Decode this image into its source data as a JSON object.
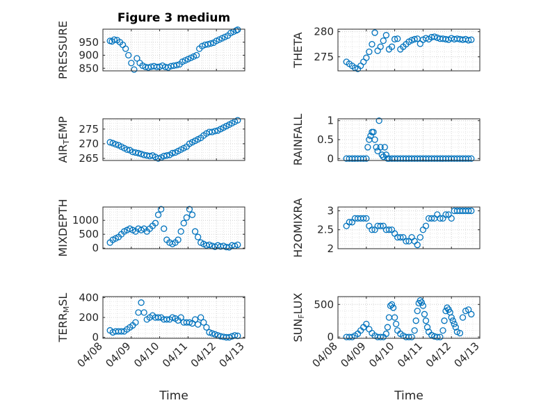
{
  "chart_data": [
    {
      "type": "scatter",
      "title": "Figure 3 medium",
      "ylabel_parts": [
        "PRESSURE"
      ],
      "ylim": [
        840,
        1000
      ],
      "yticks": [
        850,
        900,
        950
      ],
      "ytick_labels": [
        "850",
        "900",
        "950"
      ],
      "xlim": [
        0,
        5
      ],
      "xticks": [
        0,
        1,
        2,
        3,
        4,
        5
      ],
      "xtick_labels": [],
      "color": "#0072BD",
      "x": [
        0.25,
        0.32,
        0.4,
        0.5,
        0.6,
        0.7,
        0.8,
        0.9,
        1.0,
        1.1,
        1.2,
        1.3,
        1.4,
        1.5,
        1.6,
        1.7,
        1.8,
        1.9,
        2.0,
        2.1,
        2.2,
        2.3,
        2.4,
        2.5,
        2.6,
        2.7,
        2.8,
        2.9,
        3.0,
        3.1,
        3.2,
        3.3,
        3.4,
        3.5,
        3.6,
        3.7,
        3.8,
        3.9,
        4.0,
        4.1,
        4.2,
        4.3,
        4.4,
        4.5,
        4.6,
        4.7,
        4.75
      ],
      "y": [
        955,
        953,
        960,
        958,
        950,
        940,
        925,
        900,
        870,
        845,
        888,
        870,
        860,
        855,
        853,
        856,
        858,
        855,
        856,
        860,
        855,
        853,
        858,
        860,
        862,
        865,
        875,
        880,
        885,
        890,
        895,
        900,
        925,
        935,
        940,
        942,
        945,
        948,
        955,
        960,
        965,
        970,
        975,
        985,
        990,
        995,
        998
      ]
    },
    {
      "type": "scatter",
      "title": "",
      "ylabel_parts": [
        "THETA"
      ],
      "ylim": [
        272.2,
        280.5
      ],
      "yticks": [
        275,
        280
      ],
      "ytick_labels": [
        "275",
        "280"
      ],
      "xlim": [
        0,
        5
      ],
      "xticks": [
        0,
        1,
        2,
        3,
        4,
        5
      ],
      "xtick_labels": [],
      "color": "#0072BD",
      "x": [
        0.3,
        0.4,
        0.5,
        0.6,
        0.7,
        0.8,
        0.9,
        1.0,
        1.1,
        1.2,
        1.3,
        1.4,
        1.5,
        1.6,
        1.7,
        1.8,
        1.9,
        2.0,
        2.1,
        2.2,
        2.3,
        2.4,
        2.5,
        2.6,
        2.7,
        2.8,
        2.9,
        3.0,
        3.1,
        3.2,
        3.3,
        3.4,
        3.5,
        3.6,
        3.7,
        3.8,
        3.9,
        4.0,
        4.1,
        4.2,
        4.3,
        4.4,
        4.5,
        4.6,
        4.7
      ],
      "y": [
        274,
        273.6,
        273.2,
        272.8,
        272.6,
        273.2,
        274,
        274.8,
        276,
        277.5,
        279.8,
        276.2,
        277,
        278.2,
        279.3,
        276.5,
        277,
        278.5,
        278.6,
        276.5,
        277,
        277.5,
        278,
        278.3,
        278.5,
        278.6,
        277.6,
        278.4,
        278.7,
        278.5,
        278.9,
        279,
        278.8,
        278.6,
        278.6,
        278.5,
        278.4,
        278.7,
        278.5,
        278.6,
        278.5,
        278.4,
        278.5,
        278.3,
        278.4
      ]
    },
    {
      "type": "scatter",
      "title": "",
      "ylabel_parts": [
        "AIR",
        "T",
        "EMP"
      ],
      "ylim": [
        264.3,
        278.5
      ],
      "yticks": [
        265,
        270,
        275
      ],
      "ytick_labels": [
        "265",
        "270",
        "275"
      ],
      "xlim": [
        0,
        5
      ],
      "xticks": [
        0,
        1,
        2,
        3,
        4,
        5
      ],
      "xtick_labels": [],
      "color": "#0072BD",
      "x": [
        0.25,
        0.35,
        0.45,
        0.55,
        0.65,
        0.75,
        0.85,
        0.95,
        1.05,
        1.15,
        1.25,
        1.35,
        1.45,
        1.55,
        1.65,
        1.75,
        1.85,
        1.95,
        2.05,
        2.15,
        2.25,
        2.35,
        2.45,
        2.55,
        2.65,
        2.75,
        2.85,
        2.95,
        3.05,
        3.15,
        3.25,
        3.35,
        3.45,
        3.55,
        3.65,
        3.75,
        3.85,
        3.95,
        4.05,
        4.15,
        4.25,
        4.35,
        4.45,
        4.55,
        4.65,
        4.75
      ],
      "y": [
        270.5,
        270.2,
        269.8,
        269.5,
        269,
        268.5,
        268,
        267.8,
        267.2,
        267,
        266.8,
        266.5,
        266.2,
        266,
        265.8,
        266,
        265.5,
        265,
        265.3,
        265.8,
        266,
        266.2,
        266.8,
        267,
        267.5,
        268,
        268.5,
        269,
        270,
        270.5,
        271,
        271.5,
        272,
        272.8,
        273.5,
        274,
        274,
        274.3,
        274.5,
        275,
        275.5,
        276,
        276.5,
        277,
        277.5,
        278
      ]
    },
    {
      "type": "scatter",
      "title": "",
      "ylabel_parts": [
        "RAINFALL"
      ],
      "ylim": [
        -0.05,
        1.05
      ],
      "yticks": [
        0,
        0.5,
        1
      ],
      "ytick_labels": [
        "0",
        "0.5",
        "1"
      ],
      "xlim": [
        0,
        5
      ],
      "xticks": [
        0,
        1,
        2,
        3,
        4,
        5
      ],
      "xtick_labels": [],
      "color": "#0072BD",
      "x": [
        0.3,
        0.4,
        0.5,
        0.6,
        0.7,
        0.8,
        0.9,
        1.0,
        1.05,
        1.1,
        1.15,
        1.2,
        1.25,
        1.3,
        1.35,
        1.4,
        1.45,
        1.5,
        1.55,
        1.6,
        1.65,
        1.7,
        1.75,
        1.8,
        1.9,
        2.0,
        2.1,
        2.2,
        2.3,
        2.4,
        2.5,
        2.6,
        2.7,
        2.8,
        2.9,
        3.0,
        3.1,
        3.2,
        3.3,
        3.4,
        3.5,
        3.6,
        3.7,
        3.8,
        3.9,
        4.0,
        4.1,
        4.2,
        4.3,
        4.4,
        4.5,
        4.6,
        4.7
      ],
      "y": [
        0,
        0,
        0,
        0,
        0,
        0,
        0,
        0,
        0.3,
        0.5,
        0.6,
        0.7,
        0.7,
        0.5,
        0.3,
        0.2,
        1.0,
        0.3,
        0.1,
        0.05,
        0.3,
        0.1,
        0,
        0,
        0,
        0,
        0,
        0,
        0,
        0,
        0,
        0,
        0,
        0,
        0,
        0,
        0,
        0,
        0,
        0,
        0,
        0,
        0,
        0,
        0,
        0,
        0,
        0,
        0,
        0,
        0,
        0,
        0
      ]
    },
    {
      "type": "scatter",
      "title": "",
      "ylabel_parts": [
        "MIXDEPTH"
      ],
      "ylim": [
        -20,
        1480
      ],
      "yticks": [
        0,
        500,
        1000
      ],
      "ytick_labels": [
        "0",
        "500",
        "1000"
      ],
      "xlim": [
        0,
        5
      ],
      "xticks": [
        0,
        1,
        2,
        3,
        4,
        5
      ],
      "xtick_labels": [],
      "color": "#0072BD",
      "x": [
        0.25,
        0.35,
        0.45,
        0.55,
        0.65,
        0.75,
        0.85,
        0.95,
        1.05,
        1.15,
        1.25,
        1.35,
        1.45,
        1.55,
        1.65,
        1.75,
        1.85,
        1.95,
        2.05,
        2.15,
        2.25,
        2.35,
        2.45,
        2.55,
        2.65,
        2.75,
        2.85,
        2.95,
        3.05,
        3.15,
        3.25,
        3.35,
        3.45,
        3.55,
        3.65,
        3.75,
        3.85,
        3.95,
        4.05,
        4.15,
        4.25,
        4.35,
        4.45,
        4.55,
        4.65,
        4.75
      ],
      "y": [
        200,
        300,
        350,
        400,
        500,
        600,
        650,
        700,
        650,
        600,
        700,
        650,
        700,
        600,
        700,
        800,
        900,
        1200,
        1400,
        700,
        300,
        200,
        150,
        200,
        300,
        600,
        900,
        1100,
        1400,
        1200,
        600,
        400,
        200,
        150,
        100,
        120,
        80,
        50,
        100,
        60,
        80,
        40,
        30,
        100,
        80,
        120
      ]
    },
    {
      "type": "scatter",
      "title": "",
      "ylabel_parts": [
        "H2OMIXRA"
      ],
      "ylim": [
        2.0,
        3.1
      ],
      "yticks": [
        2,
        2.5,
        3
      ],
      "ytick_labels": [
        "2",
        "2.5",
        "3"
      ],
      "xlim": [
        0,
        5
      ],
      "xticks": [
        0,
        1,
        2,
        3,
        4,
        5
      ],
      "xtick_labels": [],
      "color": "#0072BD",
      "x": [
        0.3,
        0.4,
        0.5,
        0.6,
        0.7,
        0.8,
        0.9,
        1.0,
        1.1,
        1.2,
        1.3,
        1.4,
        1.5,
        1.6,
        1.7,
        1.8,
        1.9,
        2.0,
        2.1,
        2.2,
        2.3,
        2.4,
        2.5,
        2.6,
        2.7,
        2.8,
        2.9,
        3.0,
        3.1,
        3.2,
        3.3,
        3.4,
        3.5,
        3.6,
        3.7,
        3.8,
        3.9,
        4.0,
        4.1,
        4.2,
        4.3,
        4.4,
        4.5,
        4.6,
        4.7
      ],
      "y": [
        2.6,
        2.7,
        2.7,
        2.8,
        2.8,
        2.8,
        2.8,
        2.8,
        2.6,
        2.5,
        2.5,
        2.6,
        2.6,
        2.6,
        2.5,
        2.5,
        2.5,
        2.4,
        2.3,
        2.3,
        2.3,
        2.2,
        2.2,
        2.3,
        2.2,
        2.1,
        2.3,
        2.5,
        2.6,
        2.8,
        2.8,
        2.8,
        2.9,
        2.8,
        2.8,
        2.9,
        2.9,
        2.8,
        3.0,
        3.0,
        3.0,
        3.0,
        3.0,
        3.0,
        3.0
      ]
    },
    {
      "type": "scatter",
      "title": "",
      "ylabel_parts": [
        "TERR",
        "M",
        "SL"
      ],
      "ylim": [
        -10,
        410
      ],
      "yticks": [
        0,
        200,
        400
      ],
      "ytick_labels": [
        "0",
        "200",
        "400"
      ],
      "xlim": [
        0,
        5
      ],
      "xticks": [
        0,
        1,
        2,
        3,
        4,
        5
      ],
      "xtick_labels": [
        "04/08",
        "04/09",
        "04/10",
        "04/11",
        "04/12",
        "04/13"
      ],
      "xlabel": "Time",
      "color": "#0072BD",
      "x": [
        0.25,
        0.35,
        0.45,
        0.55,
        0.65,
        0.75,
        0.85,
        0.95,
        1.05,
        1.15,
        1.25,
        1.35,
        1.45,
        1.55,
        1.65,
        1.75,
        1.85,
        1.95,
        2.05,
        2.15,
        2.25,
        2.35,
        2.45,
        2.55,
        2.65,
        2.75,
        2.85,
        2.95,
        3.05,
        3.15,
        3.25,
        3.35,
        3.45,
        3.55,
        3.65,
        3.75,
        3.85,
        3.95,
        4.05,
        4.15,
        4.25,
        4.35,
        4.45,
        4.55,
        4.65,
        4.75
      ],
      "y": [
        70,
        50,
        60,
        60,
        60,
        60,
        80,
        100,
        120,
        150,
        250,
        350,
        250,
        180,
        200,
        220,
        200,
        200,
        200,
        180,
        180,
        180,
        200,
        190,
        170,
        200,
        150,
        150,
        150,
        140,
        180,
        130,
        200,
        150,
        100,
        50,
        40,
        30,
        20,
        10,
        5,
        0,
        0,
        10,
        20,
        15
      ]
    },
    {
      "type": "scatter",
      "title": "",
      "ylabel_parts": [
        "SUN",
        "F",
        "LUX"
      ],
      "ylim": [
        -20,
        620
      ],
      "yticks": [
        0,
        500
      ],
      "ytick_labels": [
        "0",
        "500"
      ],
      "xlim": [
        0,
        5
      ],
      "xticks": [
        0,
        1,
        2,
        3,
        4,
        5
      ],
      "xtick_labels": [
        "04/08",
        "04/09",
        "04/10",
        "04/11",
        "04/12",
        "04/13"
      ],
      "xlabel": "Time",
      "color": "#0072BD",
      "x": [
        0.3,
        0.4,
        0.5,
        0.6,
        0.7,
        0.8,
        0.9,
        1.0,
        1.1,
        1.2,
        1.3,
        1.4,
        1.5,
        1.6,
        1.7,
        1.75,
        1.8,
        1.85,
        1.9,
        1.95,
        2.0,
        2.05,
        2.1,
        2.2,
        2.3,
        2.4,
        2.5,
        2.6,
        2.7,
        2.75,
        2.8,
        2.85,
        2.9,
        2.95,
        3.0,
        3.05,
        3.1,
        3.15,
        3.2,
        3.3,
        3.4,
        3.5,
        3.6,
        3.7,
        3.75,
        3.8,
        3.85,
        3.9,
        3.95,
        4.0,
        4.05,
        4.1,
        4.15,
        4.2,
        4.3,
        4.4,
        4.5,
        4.6,
        4.7
      ],
      "y": [
        0,
        0,
        0,
        20,
        50,
        100,
        150,
        200,
        120,
        60,
        20,
        0,
        0,
        0,
        50,
        150,
        300,
        480,
        500,
        450,
        300,
        200,
        100,
        50,
        20,
        0,
        0,
        0,
        100,
        250,
        400,
        520,
        560,
        530,
        480,
        350,
        250,
        150,
        80,
        30,
        10,
        0,
        0,
        100,
        250,
        400,
        450,
        420,
        380,
        300,
        250,
        200,
        150,
        80,
        60,
        300,
        400,
        420,
        350
      ]
    }
  ]
}
